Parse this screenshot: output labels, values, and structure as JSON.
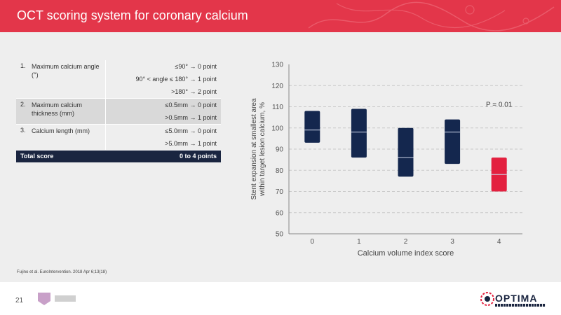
{
  "header": {
    "title": "OCT scoring system for coronary calcium"
  },
  "table": {
    "rows": [
      {
        "num": "1.",
        "criterion": "Maximum calcium angle (°)",
        "points": [
          "≤90° → 0 point",
          "90° < angle ≤ 180° → 1 point",
          ">180° → 2 point"
        ]
      },
      {
        "num": "2.",
        "criterion": "Maximum calcium thickness (mm)",
        "points": [
          "≤0.5mm → 0 point",
          ">0.5mm → 1 point"
        ]
      },
      {
        "num": "3.",
        "criterion": "Calcium length (mm)",
        "points": [
          "≤5.0mm → 0 point",
          ">5.0mm → 1 point"
        ]
      }
    ],
    "total": {
      "label": "Total score",
      "value": "0 to 4 points"
    }
  },
  "chart_data": {
    "type": "box",
    "categories": [
      "0",
      "1",
      "2",
      "3",
      "4"
    ],
    "boxes": [
      {
        "category": "0",
        "q1": 93,
        "median": 99,
        "q3": 108,
        "color": "#14274e"
      },
      {
        "category": "1",
        "q1": 86,
        "median": 98,
        "q3": 109,
        "color": "#14274e"
      },
      {
        "category": "2",
        "q1": 77,
        "median": 86,
        "q3": 100,
        "color": "#14274e"
      },
      {
        "category": "3",
        "q1": 83,
        "median": 98,
        "q3": 104,
        "color": "#14274e"
      },
      {
        "category": "4",
        "q1": 70,
        "median": 78,
        "q3": 86,
        "color": "#e3203f"
      }
    ],
    "xlabel": "Calcium volume index score",
    "ylabel": "Stent expansion at smallest area within target lesion calcium, %",
    "ylim": [
      50,
      130
    ],
    "yticks": [
      50,
      60,
      70,
      80,
      90,
      100,
      110,
      120,
      130
    ],
    "grid": "dashed horizontal",
    "annotation": "P = 0.01"
  },
  "reference": "Fujino et al. EuroIntervention. 2018 Apr 6;13(18)",
  "footer": {
    "page_number": "21",
    "logo_text": "OPTIMA"
  },
  "colors": {
    "header": "#e3364a",
    "navy": "#14274e",
    "red": "#e3203f",
    "background": "#eeeeee"
  }
}
